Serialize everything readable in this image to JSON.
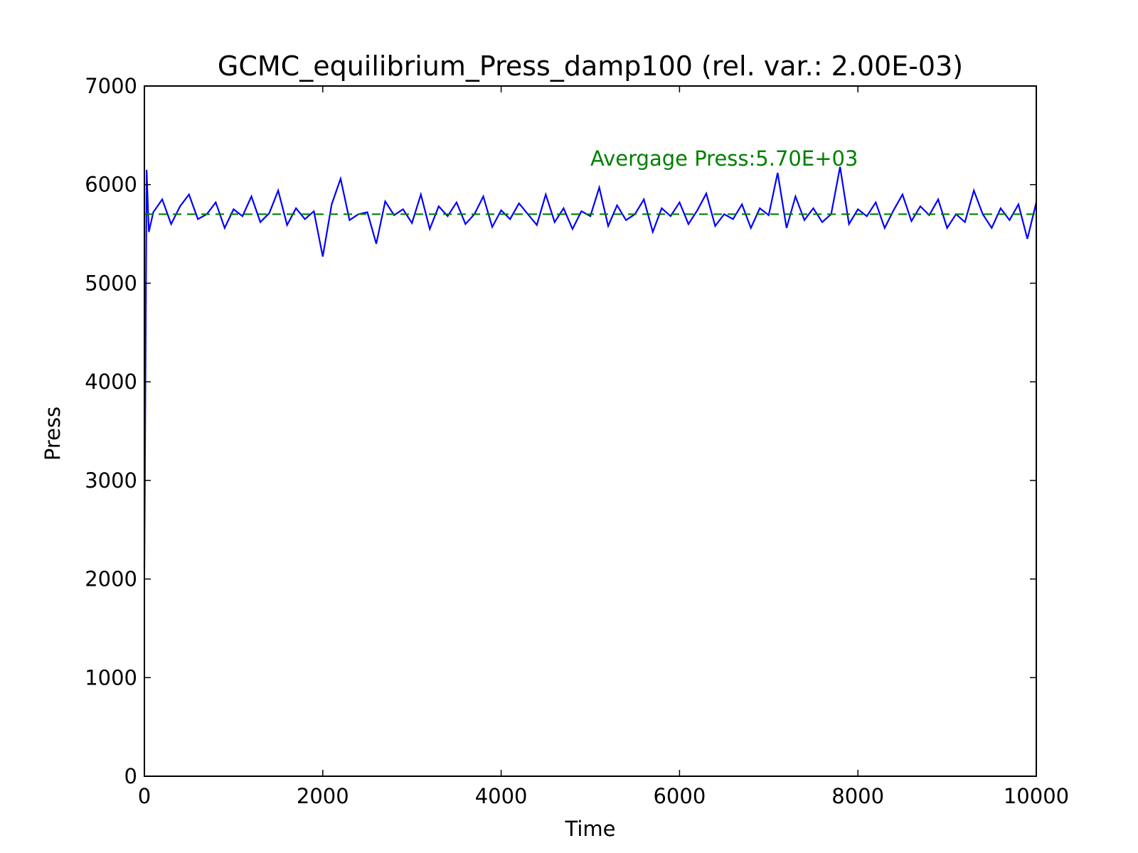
{
  "chart_data": {
    "type": "line",
    "title": "GCMC_equilibrium_Press_damp100 (rel. var.: 2.00E-03)",
    "x_label": "Time",
    "y_label": "Press",
    "annotation": "Avergage Press:5.70E+03",
    "x": [
      0,
      25,
      50,
      100,
      200,
      300,
      400,
      500,
      600,
      700,
      800,
      900,
      1000,
      1100,
      1200,
      1300,
      1400,
      1500,
      1600,
      1700,
      1800,
      1900,
      2000,
      2100,
      2200,
      2300,
      2400,
      2500,
      2600,
      2700,
      2800,
      2900,
      3000,
      3100,
      3200,
      3300,
      3400,
      3500,
      3600,
      3700,
      3800,
      3900,
      4000,
      4100,
      4200,
      4300,
      4400,
      4500,
      4600,
      4700,
      4800,
      4900,
      5000,
      5100,
      5200,
      5300,
      5400,
      5500,
      5600,
      5700,
      5800,
      5900,
      6000,
      6100,
      6200,
      6300,
      6400,
      6500,
      6600,
      6700,
      6800,
      6900,
      7000,
      7100,
      7200,
      7300,
      7400,
      7500,
      7600,
      7700,
      7800,
      7900,
      8000,
      8100,
      8200,
      8300,
      8400,
      8500,
      8600,
      8700,
      8800,
      8900,
      9000,
      9100,
      9200,
      9300,
      9400,
      9500,
      9600,
      9700,
      9800,
      9900,
      10000
    ],
    "series": [
      {
        "color": "#0000ff",
        "dashed": false,
        "values": [
          2100,
          6150,
          5520,
          5720,
          5850,
          5600,
          5780,
          5900,
          5650,
          5700,
          5820,
          5560,
          5750,
          5680,
          5880,
          5620,
          5710,
          5940,
          5590,
          5760,
          5650,
          5730,
          5270,
          5800,
          6060,
          5640,
          5700,
          5720,
          5400,
          5830,
          5690,
          5750,
          5610,
          5900,
          5550,
          5780,
          5680,
          5820,
          5600,
          5700,
          5880,
          5570,
          5740,
          5650,
          5810,
          5700,
          5590,
          5900,
          5620,
          5760,
          5550,
          5730,
          5680,
          5970,
          5580,
          5790,
          5640,
          5700,
          5850,
          5520,
          5760,
          5680,
          5820,
          5600,
          5740,
          5910,
          5580,
          5700,
          5650,
          5800,
          5560,
          5760,
          5690,
          6120,
          5560,
          5880,
          5640,
          5760,
          5620,
          5700,
          6180,
          5600,
          5750,
          5680,
          5820,
          5560,
          5740,
          5900,
          5630,
          5780,
          5690,
          5850,
          5560,
          5700,
          5620,
          5940,
          5700,
          5560,
          5760,
          5640,
          5800,
          5450,
          5820
        ]
      },
      {
        "color": "#008000",
        "dashed": true,
        "x": [
          0,
          10000
        ],
        "values": [
          5700,
          5700
        ]
      }
    ],
    "xlim": [
      0,
      10000
    ],
    "xticks": [
      0,
      2000,
      4000,
      6000,
      8000,
      10000
    ],
    "ylim": [
      0,
      7000
    ],
    "yticks": [
      0,
      1000,
      2000,
      3000,
      4000,
      5000,
      6000,
      7000
    ],
    "grid": false
  }
}
